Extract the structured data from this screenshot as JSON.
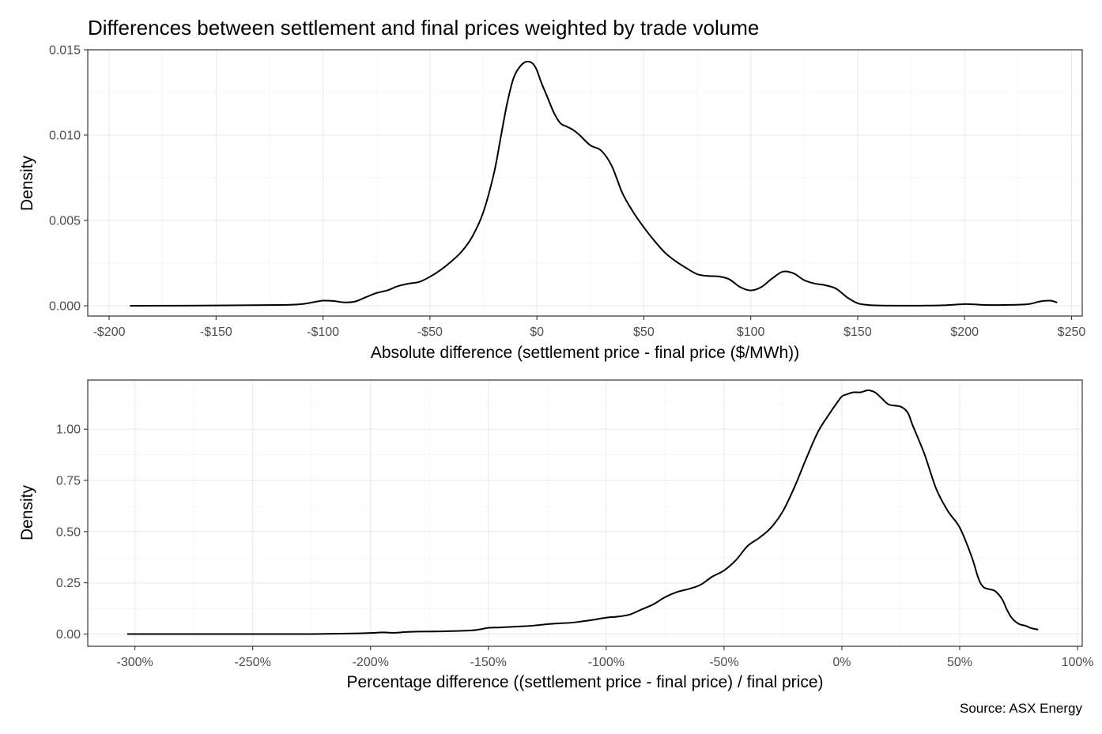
{
  "title": "Differences between settlement and final prices weighted by trade volume",
  "caption": "Source: ASX Energy",
  "chart_data": [
    {
      "type": "line",
      "panel": "absolute",
      "xlabel": "Absolute difference (settlement price - final price ($/MWh))",
      "ylabel": "Density",
      "xlim": [
        -210,
        255
      ],
      "ylim": [
        -0.0006,
        0.015
      ],
      "x_ticks": [
        -200,
        -150,
        -100,
        -50,
        0,
        50,
        100,
        150,
        200,
        250
      ],
      "x_tick_labels": [
        "-$200",
        "-$150",
        "-$100",
        "-$50",
        "$0",
        "$50",
        "$100",
        "$150",
        "$200",
        "$250"
      ],
      "y_ticks": [
        0,
        0.005,
        0.01,
        0.015
      ],
      "y_tick_labels": [
        "0.000",
        "0.005",
        "0.010",
        "0.015"
      ],
      "grid": true,
      "series": [
        {
          "color": "#000000",
          "x": [
            -190,
            -150,
            -120,
            -110,
            -105,
            -100,
            -95,
            -90,
            -85,
            -80,
            -75,
            -70,
            -65,
            -60,
            -55,
            -50,
            -45,
            -40,
            -35,
            -30,
            -25,
            -20,
            -17,
            -14,
            -11,
            -8,
            -5,
            -2,
            0,
            2,
            5,
            8,
            11,
            14,
            17,
            20,
            25,
            30,
            35,
            40,
            45,
            50,
            55,
            60,
            65,
            70,
            75,
            80,
            85,
            90,
            95,
            100,
            105,
            110,
            115,
            120,
            125,
            130,
            135,
            140,
            145,
            150,
            155,
            160,
            170,
            180,
            190,
            200,
            205,
            210,
            220,
            230,
            235,
            240,
            243
          ],
          "y": [
            0.0,
            2e-05,
            5e-05,
            0.0001,
            0.0002,
            0.0003,
            0.00028,
            0.0002,
            0.00025,
            0.0005,
            0.00075,
            0.0009,
            0.00115,
            0.0013,
            0.0014,
            0.0017,
            0.0021,
            0.0026,
            0.0032,
            0.0041,
            0.0055,
            0.0078,
            0.0098,
            0.0118,
            0.0133,
            0.014,
            0.0143,
            0.0142,
            0.0138,
            0.0131,
            0.0122,
            0.0113,
            0.0107,
            0.0105,
            0.0103,
            0.01,
            0.0094,
            0.0091,
            0.0082,
            0.0066,
            0.0055,
            0.0046,
            0.0038,
            0.0031,
            0.0026,
            0.0022,
            0.00185,
            0.00175,
            0.00172,
            0.00155,
            0.0011,
            0.0009,
            0.0011,
            0.0016,
            0.002,
            0.0019,
            0.0015,
            0.0013,
            0.0012,
            0.001,
            0.0005,
            0.00015,
            5e-05,
            2e-05,
            1e-05,
            1e-05,
            3e-05,
            0.0001,
            8e-05,
            5e-05,
            5e-05,
            0.0001,
            0.00025,
            0.0003,
            0.0002
          ]
        }
      ]
    },
    {
      "type": "line",
      "panel": "percentage",
      "xlabel": "Percentage difference ((settlement price - final price) / final price)",
      "ylabel": "Density",
      "xlim": [
        -320,
        102
      ],
      "ylim": [
        -0.06,
        1.24
      ],
      "x_ticks": [
        -300,
        -250,
        -200,
        -150,
        -100,
        -50,
        0,
        50,
        100
      ],
      "x_tick_labels": [
        "-300%",
        "-250%",
        "-200%",
        "-150%",
        "-100%",
        "-50%",
        "0%",
        "50%",
        "100%"
      ],
      "y_ticks": [
        0,
        0.25,
        0.5,
        0.75,
        1.0
      ],
      "y_tick_labels": [
        "0.00",
        "0.25",
        "0.50",
        "0.75",
        "1.00"
      ],
      "grid": true,
      "series": [
        {
          "color": "#000000",
          "x": [
            -303,
            -280,
            -250,
            -225,
            -210,
            -200,
            -195,
            -190,
            -185,
            -180,
            -170,
            -160,
            -155,
            -150,
            -145,
            -140,
            -135,
            -130,
            -125,
            -120,
            -115,
            -110,
            -105,
            -100,
            -95,
            -90,
            -85,
            -80,
            -75,
            -70,
            -65,
            -60,
            -55,
            -50,
            -45,
            -40,
            -35,
            -30,
            -25,
            -20,
            -15,
            -10,
            -5,
            -2,
            0,
            2,
            5,
            8,
            11,
            14,
            17,
            20,
            25,
            28,
            30,
            35,
            40,
            45,
            50,
            55,
            58,
            60,
            62,
            65,
            68,
            70,
            72,
            75,
            78,
            80,
            83
          ],
          "y": [
            0.0,
            0.0,
            0.0,
            0.0,
            0.002,
            0.005,
            0.008,
            0.006,
            0.01,
            0.012,
            0.013,
            0.016,
            0.02,
            0.03,
            0.032,
            0.035,
            0.038,
            0.042,
            0.048,
            0.052,
            0.055,
            0.062,
            0.07,
            0.08,
            0.085,
            0.095,
            0.12,
            0.145,
            0.18,
            0.205,
            0.22,
            0.24,
            0.28,
            0.31,
            0.36,
            0.43,
            0.47,
            0.52,
            0.6,
            0.72,
            0.86,
            0.99,
            1.08,
            1.13,
            1.16,
            1.17,
            1.18,
            1.18,
            1.19,
            1.18,
            1.15,
            1.12,
            1.11,
            1.08,
            1.02,
            0.88,
            0.71,
            0.6,
            0.52,
            0.38,
            0.27,
            0.23,
            0.22,
            0.21,
            0.17,
            0.12,
            0.08,
            0.05,
            0.04,
            0.03,
            0.022
          ]
        }
      ]
    }
  ]
}
